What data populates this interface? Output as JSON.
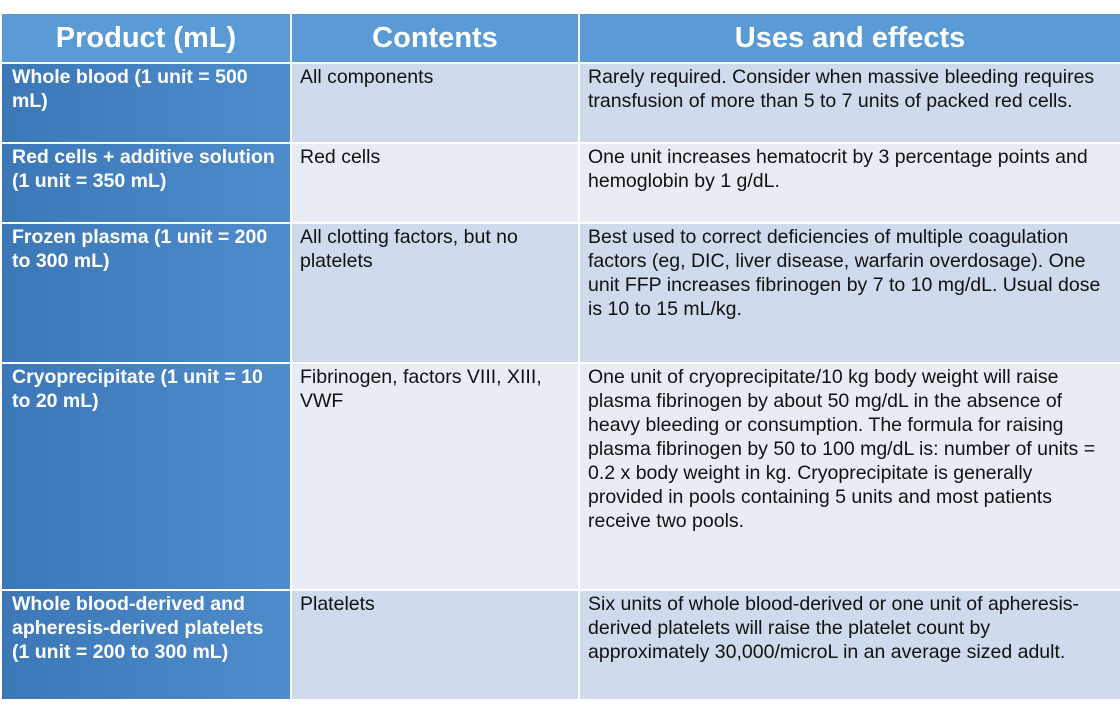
{
  "table": {
    "header": [
      "Product (mL)",
      "Contents",
      "Uses and effects"
    ],
    "rows": [
      [
        "Whole blood (1 unit = 500 mL)",
        "All components",
        "Rarely required. Consider when massive bleeding requires transfusion of  more than 5 to 7 units of packed red cells."
      ],
      [
        "Red cells + additive solution (1 unit = 350 mL)",
        "Red cells",
        "One unit increases hematocrit by 3 percentage points and hemoglobin by 1 g/dL."
      ],
      [
        "Frozen plasma (1 unit = 200 to 300 mL)",
        "All clotting factors, but no platelets",
        "Best used to correct deficiencies of multiple coagulation factors (eg, DIC, liver disease, warfarin overdosage). One unit FFP increases fibrinogen by 7 to 10 mg/dL. Usual dose is 10 to 15 mL/kg."
      ],
      [
        "Cryoprecipitate (1 unit = 10 to 20 mL)",
        "Fibrinogen, factors VIII, XIII, VWF",
        "One unit of cryoprecipitate/10 kg body weight will raise plasma fibrinogen by about 50 mg/dL in the absence of heavy bleeding or consumption. The formula for raising plasma fibrinogen by 50 to 100 mg/dL is: number of units = 0.2 x body weight in kg. Cryoprecipitate is generally provided in pools containing 5 units and most patients receive two pools."
      ],
      [
        "Whole blood-derived and apheresis-derived platelets (1 unit = 200 to 300 mL)",
        "Platelets",
        "Six units of whole blood-derived or one unit of apheresis-derived platelets will raise the platelet count by approximately 30,000/microL in an average sized adult."
      ]
    ]
  }
}
